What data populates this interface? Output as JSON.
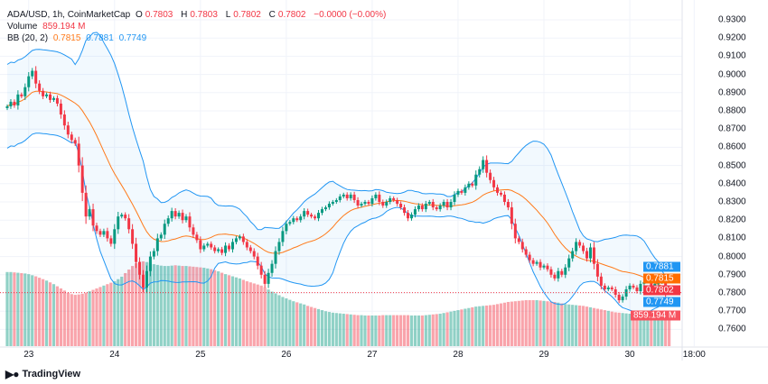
{
  "legend": {
    "symbol": "ADA/USD, 1h, CoinMarketCap",
    "open_label": "O",
    "open": "0.7803",
    "high_label": "H",
    "high": "0.7803",
    "low_label": "L",
    "low": "0.7802",
    "close_label": "C",
    "close": "0.7802",
    "change": "−0.0000 (−0.00%)",
    "volume_label": "Volume",
    "volume": "859.194 M",
    "bb_label": "BB (20, 2)",
    "bb_basis": "0.7815",
    "bb_upper": "0.7881",
    "bb_lower": "0.7749"
  },
  "price_labels": {
    "upper": "0.7881",
    "basis": "0.7815",
    "last": "0.7802",
    "lower": "0.7749",
    "volume": "859.194 M"
  },
  "logo": "TradingView",
  "colors": {
    "up": "#089981",
    "down": "#f23645",
    "band": "#2196f3",
    "basis": "#ff7a1a"
  },
  "chart_data": {
    "type": "candlestick",
    "title": "ADA/USD, 1h, CoinMarketCap",
    "y_ticks": [
      "0.9300",
      "0.9200",
      "0.9100",
      "0.9000",
      "0.8900",
      "0.8800",
      "0.8700",
      "0.8600",
      "0.8500",
      "0.8400",
      "0.8300",
      "0.8200",
      "0.8100",
      "0.8000",
      "0.7900",
      "0.7800",
      "0.7700",
      "0.7600"
    ],
    "ylim": [
      0.755,
      0.935
    ],
    "x_ticks": [
      {
        "label": "23",
        "index": 6
      },
      {
        "label": "24",
        "index": 30
      },
      {
        "label": "25",
        "index": 54
      },
      {
        "label": "26",
        "index": 78
      },
      {
        "label": "27",
        "index": 102
      },
      {
        "label": "28",
        "index": 126
      },
      {
        "label": "29",
        "index": 150
      },
      {
        "label": "30",
        "index": 174
      },
      {
        "label": "18:00",
        "index": 192
      }
    ],
    "first_open": 0.8815,
    "closes": [
      0.8825,
      0.885,
      0.883,
      0.889,
      0.888,
      0.893,
      0.899,
      0.902,
      0.895,
      0.891,
      0.888,
      0.889,
      0.886,
      0.887,
      0.884,
      0.878,
      0.872,
      0.867,
      0.864,
      0.862,
      0.85,
      0.835,
      0.822,
      0.826,
      0.817,
      0.814,
      0.812,
      0.814,
      0.81,
      0.807,
      0.815,
      0.822,
      0.823,
      0.821,
      0.815,
      0.807,
      0.797,
      0.79,
      0.783,
      0.792,
      0.8,
      0.803,
      0.81,
      0.812,
      0.818,
      0.821,
      0.825,
      0.822,
      0.824,
      0.82,
      0.822,
      0.816,
      0.812,
      0.809,
      0.804,
      0.806,
      0.807,
      0.805,
      0.803,
      0.804,
      0.802,
      0.806,
      0.804,
      0.808,
      0.81,
      0.811,
      0.808,
      0.805,
      0.803,
      0.8,
      0.795,
      0.79,
      0.785,
      0.791,
      0.796,
      0.803,
      0.808,
      0.814,
      0.818,
      0.819,
      0.821,
      0.82,
      0.822,
      0.825,
      0.823,
      0.822,
      0.821,
      0.824,
      0.826,
      0.827,
      0.829,
      0.83,
      0.831,
      0.833,
      0.834,
      0.832,
      0.834,
      0.831,
      0.828,
      0.829,
      0.83,
      0.829,
      0.832,
      0.834,
      0.83,
      0.828,
      0.83,
      0.832,
      0.831,
      0.829,
      0.827,
      0.824,
      0.821,
      0.823,
      0.826,
      0.828,
      0.826,
      0.829,
      0.83,
      0.827,
      0.826,
      0.828,
      0.83,
      0.827,
      0.83,
      0.834,
      0.836,
      0.835,
      0.838,
      0.84,
      0.839,
      0.845,
      0.848,
      0.853,
      0.846,
      0.842,
      0.838,
      0.835,
      0.834,
      0.83,
      0.827,
      0.818,
      0.81,
      0.808,
      0.804,
      0.801,
      0.798,
      0.796,
      0.797,
      0.794,
      0.795,
      0.793,
      0.79,
      0.788,
      0.792,
      0.79,
      0.794,
      0.799,
      0.803,
      0.808,
      0.806,
      0.803,
      0.799,
      0.805,
      0.796,
      0.789,
      0.784,
      0.782,
      0.783,
      0.782,
      0.779,
      0.776,
      0.778,
      0.782,
      0.784,
      0.783,
      0.781,
      0.785,
      0.786,
      0.786,
      0.782,
      0.785,
      0.786,
      0.787,
      0.7803,
      0.7802
    ],
    "volumes_m": [
      2080,
      2080,
      2070,
      2060,
      2050,
      2040,
      2020,
      1990,
      1960,
      1920,
      1880,
      1840,
      1790,
      1740,
      1680,
      1620,
      1560,
      1500,
      1460,
      1440,
      1450,
      1470,
      1500,
      1540,
      1580,
      1620,
      1660,
      1700,
      1740,
      1780,
      1820,
      1880,
      1950,
      2050,
      2150,
      2250,
      2330,
      2370,
      2380,
      2360,
      2340,
      2300,
      2280,
      2260,
      2250,
      2250,
      2260,
      2270,
      2260,
      2250,
      2250,
      2240,
      2230,
      2220,
      2210,
      2200,
      2180,
      2160,
      2130,
      2100,
      2060,
      2020,
      1990,
      1960,
      1930,
      1900,
      1860,
      1820,
      1790,
      1760,
      1730,
      1700,
      1650,
      1590,
      1530,
      1480,
      1430,
      1380,
      1340,
      1300,
      1260,
      1230,
      1200,
      1170,
      1130,
      1100,
      1070,
      1040,
      1010,
      980,
      960,
      940,
      930,
      920,
      910,
      900,
      890,
      880,
      870,
      870,
      860,
      860,
      860,
      860,
      860,
      870,
      870,
      870,
      870,
      870,
      870,
      870,
      870,
      860,
      860,
      860,
      860,
      870,
      880,
      890,
      900,
      910,
      930,
      950,
      970,
      990,
      1010,
      1030,
      1050,
      1070,
      1090,
      1110,
      1120,
      1130,
      1140,
      1150,
      1160,
      1180,
      1200,
      1220,
      1240,
      1250,
      1260,
      1270,
      1280,
      1290,
      1290,
      1290,
      1290,
      1280,
      1270,
      1260,
      1250,
      1240,
      1220,
      1200,
      1180,
      1170,
      1160,
      1150,
      1140,
      1130,
      1110,
      1090,
      1070,
      1050,
      1030,
      1010,
      990,
      970,
      950,
      940,
      930,
      920,
      910,
      900,
      890,
      880,
      870,
      870,
      865,
      862,
      860,
      860,
      859,
      859.194
    ],
    "indicator": {
      "name": "Bollinger Bands",
      "period": 20,
      "mult": 2
    },
    "last_price": 0.7802
  }
}
